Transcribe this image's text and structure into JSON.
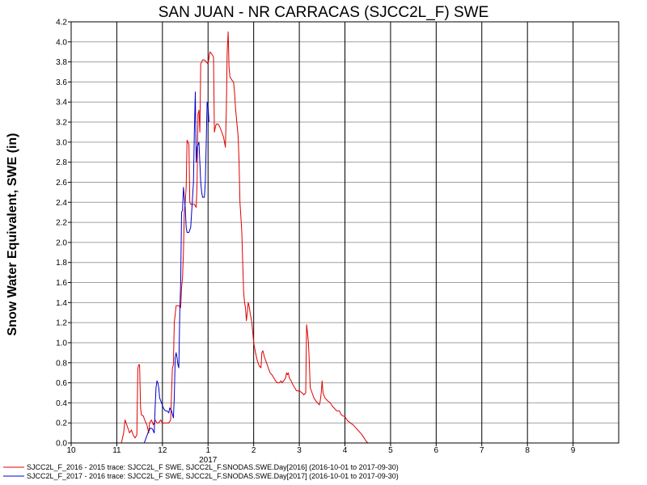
{
  "chart_data": {
    "type": "line",
    "title": "SAN JUAN - NR CARRACAS (SJCC2L_F) SWE",
    "ylabel": "Snow Water Equivalent, SWE (in)",
    "xlabel": "",
    "year_label": "2017",
    "x_tick_labels": [
      "10",
      "11",
      "12",
      "1",
      "2",
      "3",
      "4",
      "5",
      "6",
      "7",
      "8",
      "9"
    ],
    "y_tick_labels": [
      "0.0",
      "0.2",
      "0.4",
      "0.6",
      "0.8",
      "1.0",
      "1.2",
      "1.4",
      "1.6",
      "1.8",
      "2.0",
      "2.2",
      "2.4",
      "2.6",
      "2.8",
      "3.0",
      "3.2",
      "3.4",
      "3.6",
      "3.8",
      "4.0",
      "4.2"
    ],
    "ylim": [
      0,
      4.2
    ],
    "xlim": [
      0,
      12
    ],
    "grid": true,
    "legend_position": "bottom",
    "series": [
      {
        "name": "SJCC2L_F_2016 - 2015 trace: SJCC2L_F SWE, SJCC2L_F.SNODAS.SWE.Day[2016] (2016-10-01 to 2017-09-30)",
        "color": "#e00000",
        "points": [
          [
            0.95,
            0.0
          ],
          [
            1.1,
            0.0
          ],
          [
            1.15,
            0.1
          ],
          [
            1.18,
            0.23
          ],
          [
            1.22,
            0.18
          ],
          [
            1.28,
            0.1
          ],
          [
            1.32,
            0.13
          ],
          [
            1.36,
            0.08
          ],
          [
            1.4,
            0.05
          ],
          [
            1.44,
            0.08
          ],
          [
            1.46,
            0.74
          ],
          [
            1.48,
            0.78
          ],
          [
            1.5,
            0.78
          ],
          [
            1.52,
            0.35
          ],
          [
            1.54,
            0.28
          ],
          [
            1.58,
            0.27
          ],
          [
            1.62,
            0.22
          ],
          [
            1.66,
            0.18
          ],
          [
            1.7,
            0.1
          ],
          [
            1.72,
            0.2
          ],
          [
            1.76,
            0.23
          ],
          [
            1.8,
            0.18
          ],
          [
            1.84,
            0.23
          ],
          [
            1.88,
            0.2
          ],
          [
            1.92,
            0.2
          ],
          [
            1.96,
            0.23
          ],
          [
            2.0,
            0.2
          ],
          [
            2.06,
            0.2
          ],
          [
            2.1,
            0.2
          ],
          [
            2.14,
            0.2
          ],
          [
            2.18,
            0.23
          ],
          [
            2.22,
            0.75
          ],
          [
            2.24,
            0.78
          ],
          [
            2.26,
            1.2
          ],
          [
            2.3,
            1.37
          ],
          [
            2.36,
            1.37
          ],
          [
            2.4,
            1.35
          ],
          [
            2.42,
            1.55
          ],
          [
            2.44,
            1.65
          ],
          [
            2.46,
            1.9
          ],
          [
            2.48,
            2.3
          ],
          [
            2.5,
            2.4
          ],
          [
            2.52,
            2.55
          ],
          [
            2.54,
            3.02
          ],
          [
            2.56,
            3.0
          ],
          [
            2.58,
            2.98
          ],
          [
            2.6,
            2.4
          ],
          [
            2.62,
            2.38
          ],
          [
            2.66,
            2.38
          ],
          [
            2.7,
            2.38
          ],
          [
            2.74,
            2.35
          ],
          [
            2.76,
            2.6
          ],
          [
            2.78,
            3.28
          ],
          [
            2.8,
            3.32
          ],
          [
            2.82,
            3.1
          ],
          [
            2.84,
            3.78
          ],
          [
            2.88,
            3.82
          ],
          [
            2.92,
            3.82
          ],
          [
            2.96,
            3.8
          ],
          [
            3.0,
            3.78
          ],
          [
            3.04,
            3.9
          ],
          [
            3.08,
            3.88
          ],
          [
            3.12,
            3.85
          ],
          [
            3.14,
            3.1
          ],
          [
            3.16,
            3.15
          ],
          [
            3.18,
            3.18
          ],
          [
            3.22,
            3.18
          ],
          [
            3.26,
            3.15
          ],
          [
            3.3,
            3.1
          ],
          [
            3.34,
            3.05
          ],
          [
            3.36,
            3.0
          ],
          [
            3.38,
            2.95
          ],
          [
            3.4,
            3.3
          ],
          [
            3.42,
            3.9
          ],
          [
            3.44,
            4.1
          ],
          [
            3.46,
            3.75
          ],
          [
            3.48,
            3.65
          ],
          [
            3.52,
            3.62
          ],
          [
            3.56,
            3.6
          ],
          [
            3.58,
            3.5
          ],
          [
            3.6,
            3.35
          ],
          [
            3.62,
            3.25
          ],
          [
            3.64,
            3.15
          ],
          [
            3.66,
            3.05
          ],
          [
            3.68,
            2.8
          ],
          [
            3.7,
            2.4
          ],
          [
            3.72,
            2.25
          ],
          [
            3.74,
            2.1
          ],
          [
            3.76,
            1.8
          ],
          [
            3.78,
            1.5
          ],
          [
            3.8,
            1.4
          ],
          [
            3.82,
            1.35
          ],
          [
            3.84,
            1.22
          ],
          [
            3.86,
            1.3
          ],
          [
            3.88,
            1.4
          ],
          [
            3.9,
            1.37
          ],
          [
            3.92,
            1.3
          ],
          [
            3.96,
            1.2
          ],
          [
            4.0,
            1.0
          ],
          [
            4.04,
            0.9
          ],
          [
            4.08,
            0.82
          ],
          [
            4.12,
            0.77
          ],
          [
            4.16,
            0.75
          ],
          [
            4.18,
            0.9
          ],
          [
            4.2,
            0.92
          ],
          [
            4.24,
            0.85
          ],
          [
            4.28,
            0.8
          ],
          [
            4.32,
            0.75
          ],
          [
            4.36,
            0.7
          ],
          [
            4.4,
            0.68
          ],
          [
            4.44,
            0.65
          ],
          [
            4.48,
            0.62
          ],
          [
            4.52,
            0.6
          ],
          [
            4.56,
            0.6
          ],
          [
            4.6,
            0.62
          ],
          [
            4.62,
            0.6
          ],
          [
            4.66,
            0.62
          ],
          [
            4.7,
            0.65
          ],
          [
            4.72,
            0.7
          ],
          [
            4.74,
            0.68
          ],
          [
            4.76,
            0.7
          ],
          [
            4.78,
            0.65
          ],
          [
            4.82,
            0.62
          ],
          [
            4.86,
            0.58
          ],
          [
            4.9,
            0.55
          ],
          [
            4.94,
            0.52
          ],
          [
            5.0,
            0.52
          ],
          [
            5.06,
            0.5
          ],
          [
            5.1,
            0.48
          ],
          [
            5.14,
            0.5
          ],
          [
            5.16,
            1.18
          ],
          [
            5.18,
            1.1
          ],
          [
            5.2,
            1.0
          ],
          [
            5.22,
            0.8
          ],
          [
            5.24,
            0.55
          ],
          [
            5.28,
            0.5
          ],
          [
            5.32,
            0.45
          ],
          [
            5.36,
            0.42
          ],
          [
            5.4,
            0.4
          ],
          [
            5.44,
            0.38
          ],
          [
            5.46,
            0.42
          ],
          [
            5.48,
            0.5
          ],
          [
            5.5,
            0.62
          ],
          [
            5.52,
            0.5
          ],
          [
            5.56,
            0.45
          ],
          [
            5.62,
            0.42
          ],
          [
            5.68,
            0.4
          ],
          [
            5.72,
            0.37
          ],
          [
            5.76,
            0.35
          ],
          [
            5.82,
            0.32
          ],
          [
            5.88,
            0.32
          ],
          [
            5.92,
            0.28
          ],
          [
            6.0,
            0.26
          ],
          [
            6.06,
            0.22
          ],
          [
            6.12,
            0.2
          ],
          [
            6.18,
            0.18
          ],
          [
            6.24,
            0.15
          ],
          [
            6.3,
            0.12
          ],
          [
            6.36,
            0.09
          ],
          [
            6.42,
            0.05
          ],
          [
            6.46,
            0.02
          ],
          [
            6.5,
            0.0
          ],
          [
            6.55,
            0.0
          ]
        ]
      },
      {
        "name": "SJCC2L_F_2017 - 2016 trace: SJCC2L_F SWE, SJCC2L_F.SNODAS.SWE.Day[2017] (2016-10-01 to 2017-09-30)",
        "color": "#0000cc",
        "points": [
          [
            1.6,
            0.0
          ],
          [
            1.7,
            0.12
          ],
          [
            1.74,
            0.15
          ],
          [
            1.78,
            0.14
          ],
          [
            1.82,
            0.1
          ],
          [
            1.84,
            0.35
          ],
          [
            1.86,
            0.55
          ],
          [
            1.88,
            0.62
          ],
          [
            1.9,
            0.6
          ],
          [
            1.92,
            0.55
          ],
          [
            1.94,
            0.45
          ],
          [
            1.98,
            0.4
          ],
          [
            2.02,
            0.35
          ],
          [
            2.06,
            0.32
          ],
          [
            2.1,
            0.32
          ],
          [
            2.14,
            0.3
          ],
          [
            2.16,
            0.35
          ],
          [
            2.2,
            0.32
          ],
          [
            2.24,
            0.25
          ],
          [
            2.26,
            0.45
          ],
          [
            2.28,
            0.85
          ],
          [
            2.3,
            0.9
          ],
          [
            2.32,
            0.85
          ],
          [
            2.34,
            0.78
          ],
          [
            2.36,
            0.75
          ],
          [
            2.38,
            1.3
          ],
          [
            2.4,
            1.6
          ],
          [
            2.42,
            2.3
          ],
          [
            2.44,
            2.32
          ],
          [
            2.46,
            2.55
          ],
          [
            2.48,
            2.45
          ],
          [
            2.5,
            2.35
          ],
          [
            2.52,
            2.15
          ],
          [
            2.54,
            2.1
          ],
          [
            2.58,
            2.1
          ],
          [
            2.62,
            2.15
          ],
          [
            2.66,
            2.45
          ],
          [
            2.68,
            2.6
          ],
          [
            2.7,
            3.1
          ],
          [
            2.72,
            3.5
          ],
          [
            2.74,
            2.8
          ],
          [
            2.76,
            2.95
          ],
          [
            2.8,
            3.0
          ],
          [
            2.82,
            2.8
          ],
          [
            2.84,
            2.6
          ],
          [
            2.86,
            2.5
          ],
          [
            2.88,
            2.45
          ],
          [
            2.92,
            2.45
          ],
          [
            2.94,
            2.6
          ],
          [
            2.96,
            3.0
          ],
          [
            2.98,
            3.4
          ],
          [
            3.0,
            3.35
          ],
          [
            3.02,
            3.2
          ]
        ]
      }
    ]
  }
}
